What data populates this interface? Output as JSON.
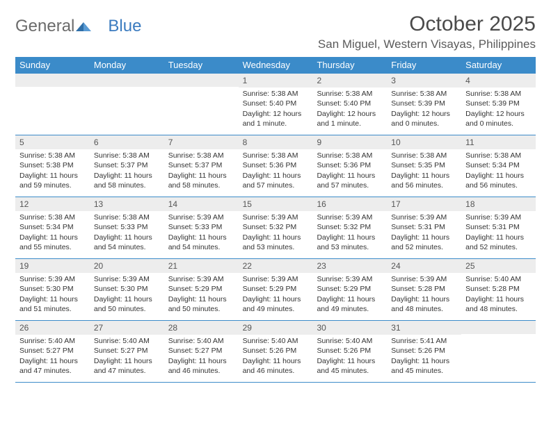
{
  "logo": {
    "text1": "General",
    "text2": "Blue"
  },
  "title": "October 2025",
  "location": "San Miguel, Western Visayas, Philippines",
  "colors": {
    "header_bg": "#3b8bc9",
    "header_text": "#ffffff",
    "daynum_bg": "#ededed",
    "border": "#3b8bc9",
    "logo_blue": "#3b7bbf",
    "text": "#333333"
  },
  "typography": {
    "title_size": 30,
    "location_size": 17,
    "header_size": 13,
    "body_size": 10.5
  },
  "day_labels": [
    "Sunday",
    "Monday",
    "Tuesday",
    "Wednesday",
    "Thursday",
    "Friday",
    "Saturday"
  ],
  "weeks": [
    [
      {
        "n": "",
        "sr": "",
        "ss": "",
        "dl": ""
      },
      {
        "n": "",
        "sr": "",
        "ss": "",
        "dl": ""
      },
      {
        "n": "",
        "sr": "",
        "ss": "",
        "dl": ""
      },
      {
        "n": "1",
        "sr": "5:38 AM",
        "ss": "5:40 PM",
        "dl": "12 hours and 1 minute."
      },
      {
        "n": "2",
        "sr": "5:38 AM",
        "ss": "5:40 PM",
        "dl": "12 hours and 1 minute."
      },
      {
        "n": "3",
        "sr": "5:38 AM",
        "ss": "5:39 PM",
        "dl": "12 hours and 0 minutes."
      },
      {
        "n": "4",
        "sr": "5:38 AM",
        "ss": "5:39 PM",
        "dl": "12 hours and 0 minutes."
      }
    ],
    [
      {
        "n": "5",
        "sr": "5:38 AM",
        "ss": "5:38 PM",
        "dl": "11 hours and 59 minutes."
      },
      {
        "n": "6",
        "sr": "5:38 AM",
        "ss": "5:37 PM",
        "dl": "11 hours and 58 minutes."
      },
      {
        "n": "7",
        "sr": "5:38 AM",
        "ss": "5:37 PM",
        "dl": "11 hours and 58 minutes."
      },
      {
        "n": "8",
        "sr": "5:38 AM",
        "ss": "5:36 PM",
        "dl": "11 hours and 57 minutes."
      },
      {
        "n": "9",
        "sr": "5:38 AM",
        "ss": "5:36 PM",
        "dl": "11 hours and 57 minutes."
      },
      {
        "n": "10",
        "sr": "5:38 AM",
        "ss": "5:35 PM",
        "dl": "11 hours and 56 minutes."
      },
      {
        "n": "11",
        "sr": "5:38 AM",
        "ss": "5:34 PM",
        "dl": "11 hours and 56 minutes."
      }
    ],
    [
      {
        "n": "12",
        "sr": "5:38 AM",
        "ss": "5:34 PM",
        "dl": "11 hours and 55 minutes."
      },
      {
        "n": "13",
        "sr": "5:38 AM",
        "ss": "5:33 PM",
        "dl": "11 hours and 54 minutes."
      },
      {
        "n": "14",
        "sr": "5:39 AM",
        "ss": "5:33 PM",
        "dl": "11 hours and 54 minutes."
      },
      {
        "n": "15",
        "sr": "5:39 AM",
        "ss": "5:32 PM",
        "dl": "11 hours and 53 minutes."
      },
      {
        "n": "16",
        "sr": "5:39 AM",
        "ss": "5:32 PM",
        "dl": "11 hours and 53 minutes."
      },
      {
        "n": "17",
        "sr": "5:39 AM",
        "ss": "5:31 PM",
        "dl": "11 hours and 52 minutes."
      },
      {
        "n": "18",
        "sr": "5:39 AM",
        "ss": "5:31 PM",
        "dl": "11 hours and 52 minutes."
      }
    ],
    [
      {
        "n": "19",
        "sr": "5:39 AM",
        "ss": "5:30 PM",
        "dl": "11 hours and 51 minutes."
      },
      {
        "n": "20",
        "sr": "5:39 AM",
        "ss": "5:30 PM",
        "dl": "11 hours and 50 minutes."
      },
      {
        "n": "21",
        "sr": "5:39 AM",
        "ss": "5:29 PM",
        "dl": "11 hours and 50 minutes."
      },
      {
        "n": "22",
        "sr": "5:39 AM",
        "ss": "5:29 PM",
        "dl": "11 hours and 49 minutes."
      },
      {
        "n": "23",
        "sr": "5:39 AM",
        "ss": "5:29 PM",
        "dl": "11 hours and 49 minutes."
      },
      {
        "n": "24",
        "sr": "5:39 AM",
        "ss": "5:28 PM",
        "dl": "11 hours and 48 minutes."
      },
      {
        "n": "25",
        "sr": "5:40 AM",
        "ss": "5:28 PM",
        "dl": "11 hours and 48 minutes."
      }
    ],
    [
      {
        "n": "26",
        "sr": "5:40 AM",
        "ss": "5:27 PM",
        "dl": "11 hours and 47 minutes."
      },
      {
        "n": "27",
        "sr": "5:40 AM",
        "ss": "5:27 PM",
        "dl": "11 hours and 47 minutes."
      },
      {
        "n": "28",
        "sr": "5:40 AM",
        "ss": "5:27 PM",
        "dl": "11 hours and 46 minutes."
      },
      {
        "n": "29",
        "sr": "5:40 AM",
        "ss": "5:26 PM",
        "dl": "11 hours and 46 minutes."
      },
      {
        "n": "30",
        "sr": "5:40 AM",
        "ss": "5:26 PM",
        "dl": "11 hours and 45 minutes."
      },
      {
        "n": "31",
        "sr": "5:41 AM",
        "ss": "5:26 PM",
        "dl": "11 hours and 45 minutes."
      },
      {
        "n": "",
        "sr": "",
        "ss": "",
        "dl": ""
      }
    ]
  ],
  "labels": {
    "sunrise": "Sunrise:",
    "sunset": "Sunset:",
    "daylight": "Daylight:"
  }
}
